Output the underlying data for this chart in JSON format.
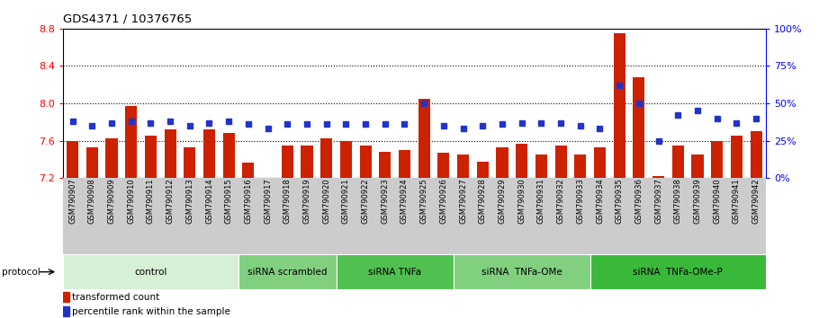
{
  "title": "GDS4371 / 10376765",
  "samples": [
    "GSM790907",
    "GSM790908",
    "GSM790909",
    "GSM790910",
    "GSM790911",
    "GSM790912",
    "GSM790913",
    "GSM790914",
    "GSM790915",
    "GSM790916",
    "GSM790917",
    "GSM790918",
    "GSM790919",
    "GSM790920",
    "GSM790921",
    "GSM790922",
    "GSM790923",
    "GSM790924",
    "GSM790925",
    "GSM790926",
    "GSM790927",
    "GSM790928",
    "GSM790929",
    "GSM790930",
    "GSM790931",
    "GSM790932",
    "GSM790933",
    "GSM790934",
    "GSM790935",
    "GSM790936",
    "GSM790937",
    "GSM790938",
    "GSM790939",
    "GSM790940",
    "GSM790941",
    "GSM790942"
  ],
  "bar_values": [
    7.6,
    7.53,
    7.63,
    7.97,
    7.65,
    7.72,
    7.53,
    7.72,
    7.68,
    7.37,
    7.2,
    7.55,
    7.55,
    7.63,
    7.6,
    7.55,
    7.48,
    7.5,
    8.05,
    7.47,
    7.45,
    7.38,
    7.53,
    7.57,
    7.45,
    7.55,
    7.45,
    7.53,
    8.75,
    8.28,
    7.22,
    7.55,
    7.45,
    7.6,
    7.65,
    7.7
  ],
  "percentile_values": [
    38,
    35,
    37,
    38,
    37,
    38,
    35,
    37,
    38,
    36,
    33,
    36,
    36,
    36,
    36,
    36,
    36,
    36,
    50,
    35,
    33,
    35,
    36,
    37,
    37,
    37,
    35,
    33,
    62,
    50,
    25,
    42,
    45,
    40,
    37,
    40
  ],
  "ylim_left": [
    7.2,
    8.8
  ],
  "ylim_right": [
    0,
    100
  ],
  "yticks_left": [
    7.2,
    7.6,
    8.0,
    8.4,
    8.8
  ],
  "yticks_right": [
    0,
    25,
    50,
    75,
    100
  ],
  "bar_color": "#cc2200",
  "dot_color": "#2233cc",
  "protocol_groups": [
    {
      "label": "control",
      "start": 0,
      "end": 9,
      "color": "#d6f0d6"
    },
    {
      "label": "siRNA scrambled",
      "start": 9,
      "end": 14,
      "color": "#80d080"
    },
    {
      "label": "siRNA TNFa",
      "start": 14,
      "end": 20,
      "color": "#50c050"
    },
    {
      "label": "siRNA  TNFa-OMe",
      "start": 20,
      "end": 27,
      "color": "#80d080"
    },
    {
      "label": "siRNA  TNFa-OMe-P",
      "start": 27,
      "end": 36,
      "color": "#3ab83a"
    }
  ],
  "legend_bar_label": "transformed count",
  "legend_dot_label": "percentile rank within the sample"
}
